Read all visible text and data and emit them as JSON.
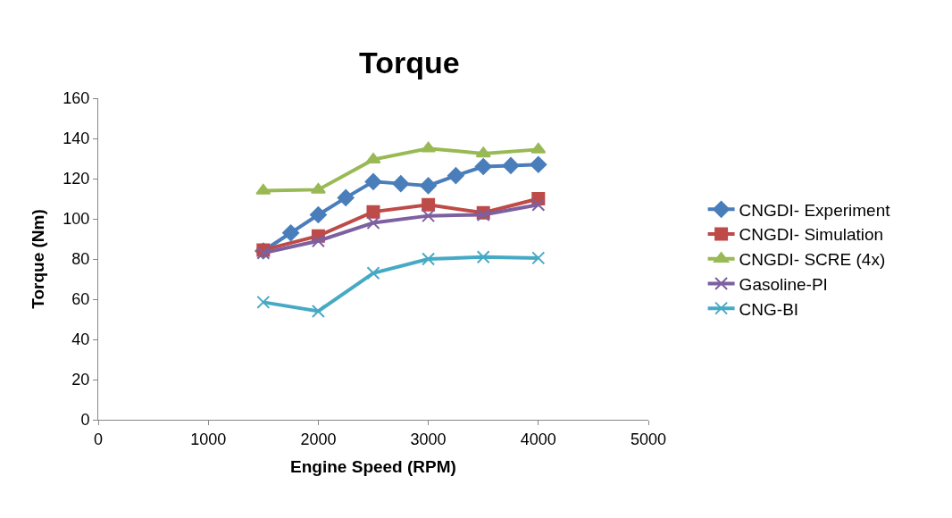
{
  "chart_data": {
    "type": "line",
    "title": "Torque",
    "xlabel": "Engine Speed (RPM)",
    "ylabel": "Torque (Nm)",
    "xlim": [
      0,
      5000
    ],
    "xticks": [
      0,
      1000,
      2000,
      3000,
      4000,
      5000
    ],
    "ylim": [
      0,
      160
    ],
    "yticks": [
      0,
      20,
      40,
      60,
      80,
      100,
      120,
      140,
      160
    ],
    "grid": false,
    "legend": "right",
    "line_style": "solid",
    "series": [
      {
        "name": "CNGDI- Experiment",
        "color": "#4a7ebb",
        "marker": "diamond",
        "x": [
          1500,
          1750,
          2000,
          2250,
          2500,
          2750,
          3000,
          3250,
          3500,
          3750,
          4000
        ],
        "values": [
          84,
          93,
          102,
          110.5,
          118.5,
          117.5,
          116.5,
          121.5,
          126,
          126.5,
          127
        ]
      },
      {
        "name": "CNGDI- Simulation",
        "color": "#be4b48",
        "marker": "square",
        "x": [
          1500,
          2000,
          2500,
          3000,
          3500,
          4000
        ],
        "values": [
          84.5,
          91.5,
          103.5,
          107,
          103,
          110
        ]
      },
      {
        "name": "CNGDI- SCRE (4x)",
        "color": "#98b954",
        "marker": "triangle",
        "x": [
          1500,
          2000,
          2500,
          3000,
          3500,
          4000
        ],
        "values": [
          114,
          114.5,
          129.5,
          135,
          132.5,
          134.5
        ]
      },
      {
        "name": "Gasoline-PI",
        "color": "#7d60a0",
        "marker": "cross",
        "x": [
          1500,
          2000,
          2500,
          3000,
          3500,
          4000
        ],
        "values": [
          83,
          89,
          98,
          101.5,
          102,
          107
        ]
      },
      {
        "name": "CNG-BI",
        "color": "#46aac5",
        "marker": "cross",
        "x": [
          1500,
          2000,
          2500,
          3000,
          3500,
          4000
        ],
        "values": [
          58.5,
          54,
          73,
          80,
          81,
          80.5
        ]
      }
    ]
  }
}
